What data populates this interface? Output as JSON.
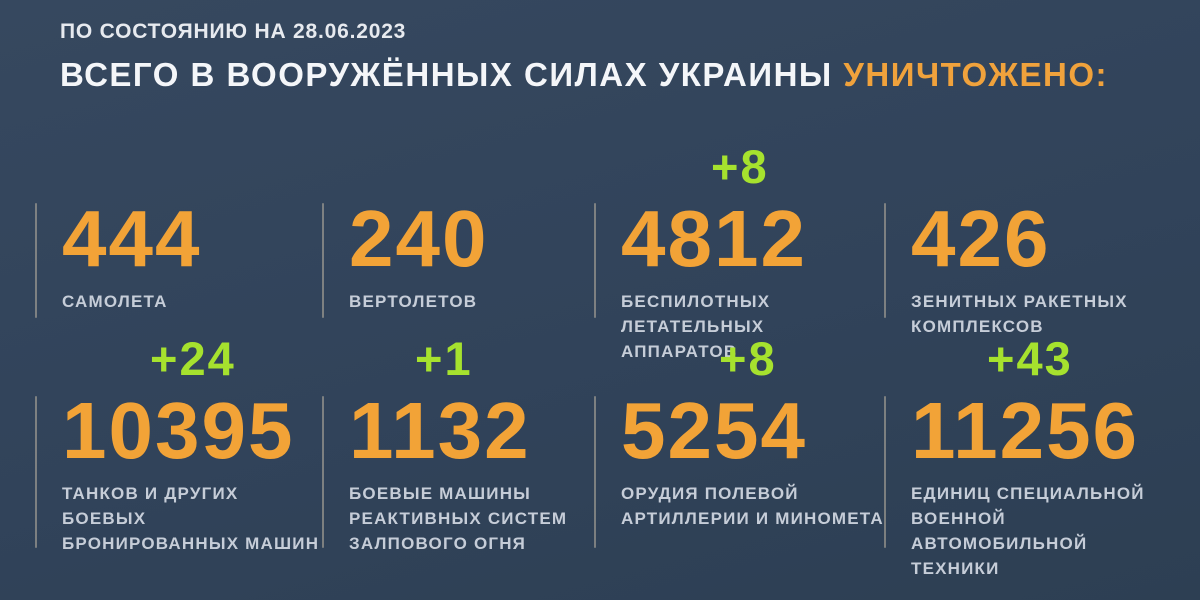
{
  "page": {
    "date_line": "ПО СОСТОЯНИЮ НА 28.06.2023",
    "title_main": "ВСЕГО В ВООРУЖЁННЫХ СИЛАХ УКРАИНЫ",
    "title_highlight": "УНИЧТОЖЕНО:"
  },
  "colors": {
    "background": "#31435A",
    "number_orange": "#F2A337",
    "title_highlight_orange": "#F0A23C",
    "increment_green": "#A6E22E",
    "label_gray": "#C6CDD8",
    "title_white": "#F4F6F9",
    "divider": "#ACA699"
  },
  "stats": {
    "row1": [
      {
        "value": "444",
        "increment": "",
        "label": "САМОЛЕТА"
      },
      {
        "value": "240",
        "increment": "",
        "label": "ВЕРТОЛЕТОВ"
      },
      {
        "value": "4812",
        "increment": "+8",
        "label": "БЕСПИЛОТНЫХ\nЛЕТАТЕЛЬНЫХ АППАРАТОВ"
      },
      {
        "value": "426",
        "increment": "",
        "label": "ЗЕНИТНЫХ РАКЕТНЫХ\nКОМПЛЕКСОВ"
      }
    ],
    "row2": [
      {
        "value": "10395",
        "increment": "+24",
        "label": "ТАНКОВ И ДРУГИХ БОЕВЫХ\nБРОНИРОВАННЫХ МАШИН"
      },
      {
        "value": "1132",
        "increment": "+1",
        "label": "БОЕВЫЕ МАШИНЫ\nРЕАКТИВНЫХ СИСТЕМ\nЗАЛПОВОГО ОГНЯ"
      },
      {
        "value": "5254",
        "increment": "+8",
        "label": "ОРУДИЯ ПОЛЕВОЙ\nАРТИЛЛЕРИИ И МИНОМЕТА"
      },
      {
        "value": "11256",
        "increment": "+43",
        "label": "ЕДИНИЦ СПЕЦИАЛЬНОЙ\nВОЕННОЙ АВТОМОБИЛЬНОЙ\nТЕХНИКИ"
      }
    ]
  },
  "chart_data": {
    "type": "table",
    "title": "ВСЕГО В ВООРУЖЁННЫХ СИЛАХ УКРАИНЫ УНИЧТОЖЕНО:",
    "subtitle": "ПО СОСТОЯНИЮ НА 28.06.2023",
    "categories": [
      "самолета",
      "вертолетов",
      "беспилотных летательных аппаратов",
      "зенитных ракетных комплексов",
      "танков и других боевых бронированных машин",
      "боевые машины реактивных систем залпового огня",
      "орудия полевой артиллерии и миномета",
      "единиц специальной военной автомобильной техники"
    ],
    "values": [
      444,
      240,
      4812,
      426,
      10395,
      1132,
      5254,
      11256
    ],
    "increments": [
      null,
      null,
      8,
      null,
      24,
      1,
      8,
      43
    ],
    "layout": "2 rows x 4 columns, increments shown in green above values"
  }
}
